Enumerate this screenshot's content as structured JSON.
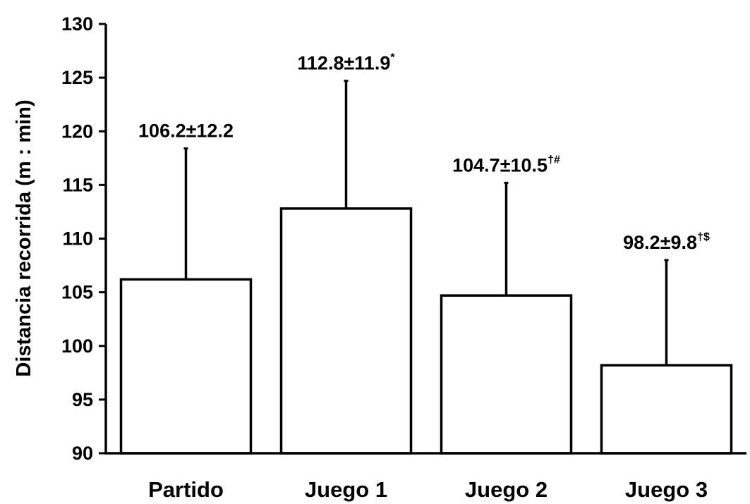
{
  "chart_data": {
    "type": "bar",
    "title": "",
    "xlabel": "",
    "ylabel": "Distancia recorrida (m : min)",
    "ylim": [
      90,
      130
    ],
    "yticks": [
      90,
      95,
      100,
      105,
      110,
      115,
      120,
      125,
      130
    ],
    "categories": [
      "Partido",
      "Juego 1",
      "Juego 2",
      "Juego 3"
    ],
    "values": [
      106.2,
      112.8,
      104.7,
      98.2
    ],
    "errors": [
      12.2,
      11.9,
      10.5,
      9.8
    ],
    "data_labels": [
      "106.2±12.2",
      "112.8±11.9",
      "104.7±10.5",
      "98.2±9.8"
    ],
    "label_marks": [
      "",
      "*",
      "†#",
      "†$"
    ],
    "bar_fill": "#ffffff",
    "bar_stroke": "#000000",
    "grid": false,
    "legend": "none"
  }
}
